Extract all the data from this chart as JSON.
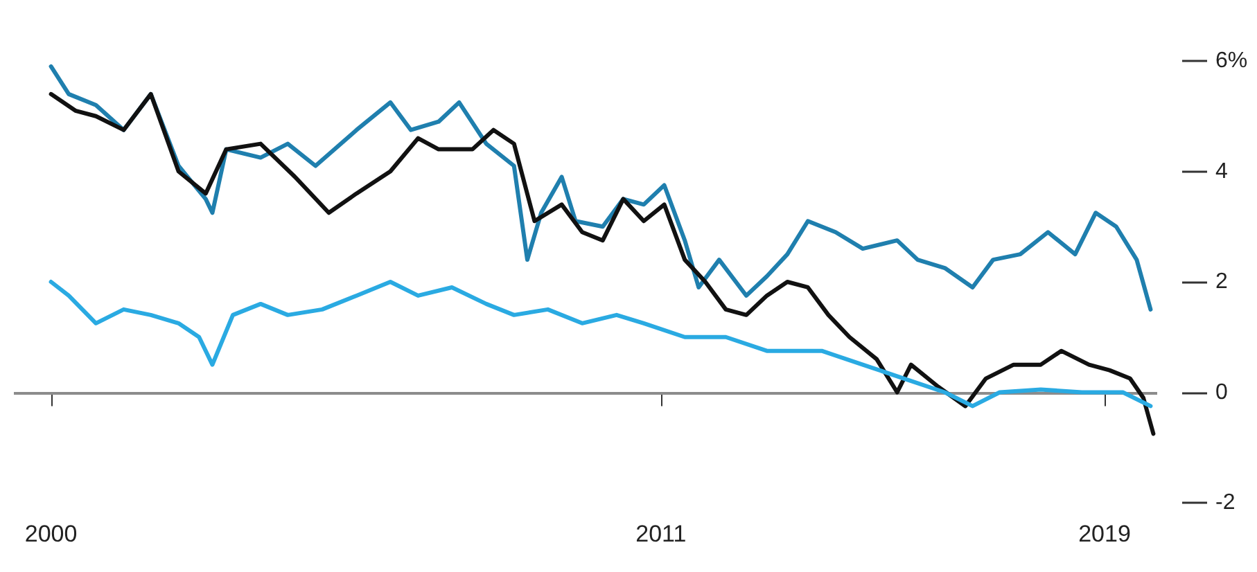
{
  "chart_data": {
    "type": "line",
    "xlim": [
      1999.33,
      2019.95
    ],
    "xticks": [
      2000,
      2011,
      2019
    ],
    "ylim": [
      -2,
      6
    ],
    "yticks": [
      {
        "value": 6,
        "label": "6%"
      },
      4,
      2,
      0,
      -2
    ],
    "grid": false,
    "marker": "none",
    "line_style": "solid",
    "ref_lines": [
      {
        "axis": "y",
        "value": 0,
        "color": "#8c8c8c"
      }
    ],
    "series": [
      {
        "color": "#1f7fae",
        "x": [
          2000,
          2000.32,
          2000.81,
          2001.31,
          2001.8,
          2002.3,
          2002.79,
          2002.91,
          2003.16,
          2003.78,
          2004.27,
          2004.77,
          2005.51,
          2006.12,
          2006.49,
          2006.99,
          2007.36,
          2007.85,
          2008.35,
          2008.59,
          2008.84,
          2009.21,
          2009.46,
          2009.95,
          2010.32,
          2010.69,
          2011.06,
          2011.43,
          2011.68,
          2012.05,
          2012.54,
          2012.91,
          2013.28,
          2013.65,
          2014.15,
          2014.64,
          2015.26,
          2015.63,
          2016.12,
          2016.62,
          2016.99,
          2017.48,
          2017.98,
          2018.47,
          2018.84,
          2019.21,
          2019.58,
          2019.83
        ],
        "values": [
          5.9,
          5.4,
          5.2,
          4.75,
          5.4,
          4.1,
          3.5,
          3.25,
          4.4,
          4.25,
          4.5,
          4.1,
          4.75,
          5.25,
          4.75,
          4.9,
          5.25,
          4.5,
          4.1,
          2.4,
          3.25,
          3.9,
          3.1,
          3.0,
          3.5,
          3.4,
          3.75,
          2.75,
          1.9,
          2.4,
          1.75,
          2.1,
          2.5,
          3.1,
          2.9,
          2.6,
          2.75,
          2.4,
          2.25,
          1.9,
          2.4,
          2.5,
          2.9,
          2.5,
          3.25,
          3.0,
          2.4,
          1.5
        ]
      },
      {
        "color": "#111111",
        "x": [
          2000,
          2000.44,
          2000.81,
          2001.31,
          2001.8,
          2002.3,
          2002.79,
          2003.16,
          2003.78,
          2004.4,
          2005.01,
          2005.51,
          2006.12,
          2006.62,
          2006.99,
          2007.6,
          2007.98,
          2008.35,
          2008.72,
          2009.21,
          2009.58,
          2009.95,
          2010.32,
          2010.69,
          2011.06,
          2011.43,
          2011.8,
          2012.17,
          2012.54,
          2012.91,
          2013.28,
          2013.65,
          2014.02,
          2014.4,
          2014.89,
          2015.26,
          2015.51,
          2016.0,
          2016.49,
          2016.86,
          2017.36,
          2017.85,
          2018.22,
          2018.72,
          2019.09,
          2019.46,
          2019.7,
          2019.88
        ],
        "values": [
          5.4,
          5.1,
          5.0,
          4.75,
          5.4,
          4.0,
          3.6,
          4.4,
          4.5,
          3.9,
          3.25,
          3.6,
          4.0,
          4.6,
          4.4,
          4.4,
          4.75,
          4.5,
          3.1,
          3.4,
          2.9,
          2.75,
          3.5,
          3.1,
          3.4,
          2.4,
          2.0,
          1.5,
          1.4,
          1.75,
          2.0,
          1.9,
          1.4,
          1.0,
          0.6,
          0,
          0.5,
          0.1,
          -0.25,
          0.25,
          0.5,
          0.5,
          0.75,
          0.5,
          0.4,
          0.25,
          -0.1,
          -0.75
        ]
      },
      {
        "color": "#2aaae2",
        "x": [
          2000,
          2000.32,
          2000.81,
          2001.31,
          2001.8,
          2002.3,
          2002.67,
          2002.91,
          2003.28,
          2003.78,
          2004.27,
          2004.89,
          2005.51,
          2006.12,
          2006.62,
          2007.23,
          2007.85,
          2008.35,
          2008.96,
          2009.58,
          2010.2,
          2010.69,
          2011.43,
          2012.17,
          2012.91,
          2013.9,
          2014.64,
          2015.38,
          2016.12,
          2016.62,
          2017.11,
          2017.85,
          2018.59,
          2019.33,
          2019.83
        ],
        "values": [
          2.0,
          1.75,
          1.25,
          1.5,
          1.4,
          1.25,
          1.0,
          0.5,
          1.4,
          1.6,
          1.4,
          1.5,
          1.75,
          2.0,
          1.75,
          1.9,
          1.6,
          1.4,
          1.5,
          1.25,
          1.4,
          1.25,
          1.0,
          1.0,
          0.75,
          0.75,
          0.5,
          0.25,
          0,
          -0.25,
          0,
          0.05,
          0,
          0,
          -0.25
        ]
      }
    ]
  }
}
